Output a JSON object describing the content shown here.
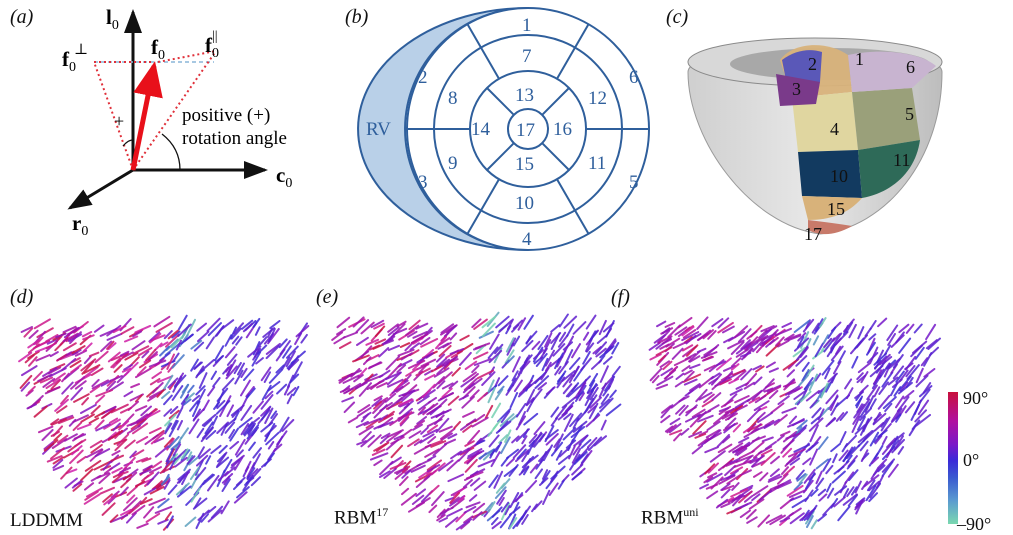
{
  "panels": {
    "a": "(a)",
    "b": "(b)",
    "c": "(c)",
    "d": "(d)",
    "e": "(e)",
    "f": "(f)"
  },
  "panel_a": {
    "axis_l": "l",
    "axis_c": "c",
    "axis_r": "r",
    "sub0": "0",
    "f_perp": "f",
    "f_par": "f",
    "f0": "f",
    "perp_sym": "⊥",
    "par_sym": "||",
    "plus": "+",
    "text_line1": "positive (+)",
    "text_line2": "rotation angle",
    "colors": {
      "fiber": "#e8101a",
      "dotted": "#e0303a",
      "dashed": "#8ab6d8"
    }
  },
  "panel_b": {
    "rv": "RV",
    "segments": [
      "1",
      "2",
      "3",
      "4",
      "5",
      "6",
      "7",
      "8",
      "9",
      "10",
      "11",
      "12",
      "13",
      "14",
      "15",
      "16",
      "17"
    ],
    "colors": {
      "line": "#2f5f9c",
      "rv_fill": "#b9d0e8"
    }
  },
  "panel_c": {
    "segments": [
      "1",
      "2",
      "3",
      "4",
      "5",
      "6",
      "10",
      "11",
      "15",
      "17"
    ]
  },
  "methods": {
    "d": "LDDMM",
    "e_base": "RBM",
    "e_sup": "17",
    "f_base": "RBM",
    "f_sup": "uni"
  },
  "colorbar": {
    "top": "90°",
    "mid": "0°",
    "bottom": "–90°",
    "colors": [
      "#c8103c",
      "#b010a0",
      "#7a18c8",
      "#3a2ad8",
      "#3a5ad0",
      "#5a9ad0",
      "#7ad8b0"
    ]
  }
}
